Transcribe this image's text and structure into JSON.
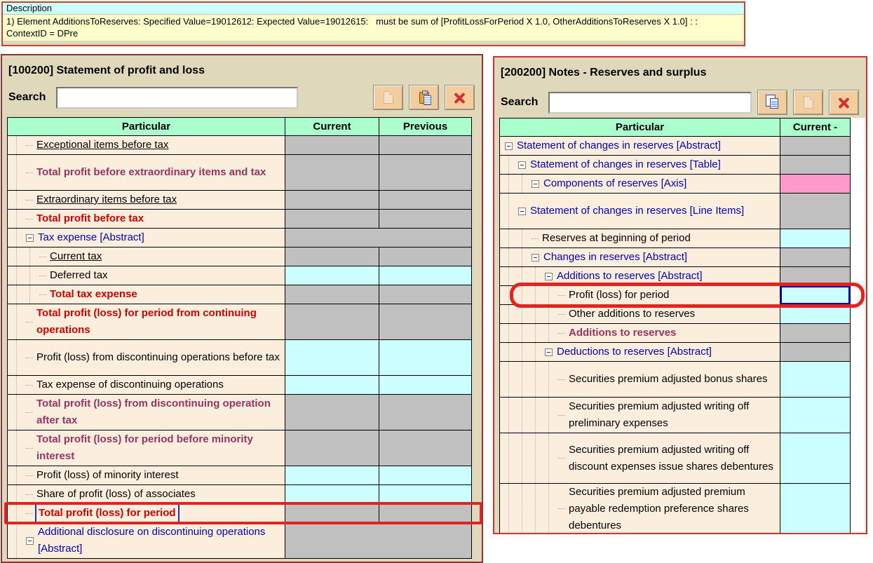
{
  "banner": {
    "title": "Description",
    "message_lines": [
      "1) Element AdditionsToReserves: Specified Value=19012612: Expected Value=19012615:   must be sum of [ProfitLossForPeriod X 1.0, OtherAdditionsToReserves X 1.0] : :",
      "ContextID = DPre"
    ]
  },
  "colors": {
    "panel_bg": "#DFD8BA",
    "header_bg": "#AAFFCC",
    "row_bg": "#FBEEDC",
    "cell_gray": "#C0C0C0",
    "cell_cyan": "#CCFFFF",
    "cell_pink": "#FF99CC",
    "text_blue": "#0000BB",
    "text_red": "#CC0000",
    "text_purple": "#993366",
    "annotation_red": "#E32222",
    "left_panel_border": "#8E3334",
    "right_panel_border": "#CC3333"
  },
  "panels": [
    {
      "title": "[100200] Statement of profit and loss",
      "search": {
        "label": "Search",
        "value": ""
      },
      "toolbar": [
        {
          "name": "copy",
          "icon": "page-icon",
          "enabled": false
        },
        {
          "name": "paste",
          "icon": "clipboard-icon",
          "enabled": true
        },
        {
          "name": "delete",
          "icon": "x-icon",
          "enabled": true
        }
      ],
      "columns": [
        "Particular",
        "Current",
        "Previous"
      ],
      "rows": [
        {
          "label": "Exceptional items before tax",
          "style": "black",
          "underline": true,
          "indent": 1,
          "lines": 1,
          "cells": [
            "gray",
            "gray"
          ]
        },
        {
          "label": "Total profit before extraordinary items and tax",
          "style": "purple",
          "indent": 1,
          "lines": 2,
          "cells": [
            "gray",
            "gray"
          ]
        },
        {
          "label": "Extraordinary items before tax",
          "style": "black",
          "underline": true,
          "indent": 1,
          "lines": 1,
          "cells": [
            "gray",
            "gray"
          ]
        },
        {
          "label": "Total profit before tax",
          "style": "red",
          "indent": 1,
          "lines": 1,
          "cells": [
            "gray",
            "gray"
          ]
        },
        {
          "label": "Tax expense [Abstract]",
          "style": "blue",
          "indent": 1,
          "expand": true,
          "lines": 1,
          "span": true,
          "cells": [
            "gray"
          ]
        },
        {
          "label": "Current tax",
          "style": "black",
          "underline": true,
          "indent": 2,
          "lines": 1,
          "cells": [
            "gray",
            "gray"
          ]
        },
        {
          "label": "Deferred tax",
          "style": "black",
          "indent": 2,
          "lines": 1,
          "cells": [
            "cyan",
            "cyan"
          ]
        },
        {
          "label": "Total tax expense",
          "style": "red",
          "indent": 2,
          "lines": 1,
          "cells": [
            "gray",
            "gray"
          ]
        },
        {
          "label": "Total profit (loss) for period from continuing operations",
          "style": "red",
          "indent": 1,
          "lines": 2,
          "cells": [
            "gray",
            "gray"
          ]
        },
        {
          "label": "Profit (loss) from discontinuing operations before tax",
          "style": "black",
          "indent": 1,
          "lines": 2,
          "cells": [
            "cyan",
            "cyan"
          ]
        },
        {
          "label": "Tax expense of discontinuing operations",
          "style": "black",
          "indent": 1,
          "lines": 1,
          "cells": [
            "cyan",
            "cyan"
          ]
        },
        {
          "label": "Total profit (loss) from discontinuing operation after tax",
          "style": "purple",
          "indent": 1,
          "lines": 2,
          "cells": [
            "gray",
            "gray"
          ]
        },
        {
          "label": "Total profit (loss) for period before minority interest",
          "style": "purple",
          "indent": 1,
          "lines": 2,
          "cells": [
            "gray",
            "gray"
          ]
        },
        {
          "label": "Profit (loss) of minority interest",
          "style": "black",
          "indent": 1,
          "lines": 1,
          "cells": [
            "cyan",
            "cyan"
          ]
        },
        {
          "label": "Share of profit (loss) of associates",
          "style": "black",
          "indent": 1,
          "lines": 1,
          "cells": [
            "cyan",
            "cyan"
          ]
        },
        {
          "label": "Total profit (loss) for period",
          "style": "red",
          "indent": 1,
          "lines": 1,
          "cells": [
            "gray",
            "gray"
          ],
          "annotation": "rect",
          "cursor_bars": true
        },
        {
          "label": "Additional disclosure on discontinuing operations [Abstract]",
          "style": "blue",
          "indent": 1,
          "expand": true,
          "lines": 2,
          "span": true,
          "cells": [
            "gray"
          ]
        }
      ]
    },
    {
      "title": "[200200] Notes - Reserves and surplus",
      "search": {
        "label": "Search",
        "value": ""
      },
      "toolbar": [
        {
          "name": "copy",
          "icon": "copy-pages-icon",
          "enabled": true
        },
        {
          "name": "paste",
          "icon": "page-icon",
          "enabled": false
        },
        {
          "name": "delete",
          "icon": "x-icon",
          "enabled": true
        }
      ],
      "columns": [
        "Particular",
        "Current -"
      ],
      "rows": [
        {
          "label": "Statement of changes in reserves [Abstract]",
          "style": "blue",
          "indent": 0,
          "expand": true,
          "lines": 1,
          "cells": [
            "gray"
          ]
        },
        {
          "label": "Statement of changes in reserves [Table]",
          "style": "blue",
          "indent": 1,
          "expand": true,
          "lines": 1,
          "cells": [
            "gray"
          ]
        },
        {
          "label": "Components of reserves [Axis]",
          "style": "blue",
          "indent": 2,
          "expand": true,
          "lines": 1,
          "cells": [
            "pink"
          ]
        },
        {
          "label": "Statement of changes in reserves [Line Items]",
          "style": "blue",
          "indent": 1,
          "expand": true,
          "lines": 2,
          "cells": [
            "gray"
          ]
        },
        {
          "label": "Reserves at beginning of period",
          "style": "black",
          "indent": 2,
          "lines": 1,
          "cells": [
            "cyan"
          ]
        },
        {
          "label": "Changes in reserves [Abstract]",
          "style": "blue",
          "indent": 2,
          "expand": true,
          "lines": 1,
          "cells": [
            "gray"
          ]
        },
        {
          "label": "Additions to reserves [Abstract]",
          "style": "blue",
          "indent": 3,
          "expand": true,
          "lines": 1,
          "cells": [
            "gray"
          ]
        },
        {
          "label": "Profit (loss) for period",
          "style": "black",
          "indent": 4,
          "lines": 1,
          "cells": [
            "cyan"
          ],
          "annotation": "oval",
          "selected": 0
        },
        {
          "label": "Other additions to reserves",
          "style": "black",
          "indent": 4,
          "lines": 1,
          "cells": [
            "cyan"
          ]
        },
        {
          "label": "Additions to reserves",
          "style": "purple",
          "indent": 4,
          "lines": 1,
          "cells": [
            "gray"
          ]
        },
        {
          "label": "Deductions to reserves [Abstract]",
          "style": "blue",
          "indent": 3,
          "expand": true,
          "lines": 1,
          "cells": [
            "gray"
          ]
        },
        {
          "label": "Securities premium adjusted bonus shares",
          "style": "black",
          "indent": 4,
          "lines": 2,
          "cells": [
            "cyan"
          ]
        },
        {
          "label": "Securities premium adjusted writing off preliminary expenses",
          "style": "black",
          "indent": 4,
          "lines": 2,
          "cells": [
            "cyan"
          ]
        },
        {
          "label": "Securities premium adjusted writing off discount expenses issue shares debentures",
          "style": "black",
          "indent": 4,
          "lines": 3,
          "cells": [
            "cyan"
          ]
        },
        {
          "label": "Securities premium adjusted premium payable redemption preference shares debentures",
          "style": "black",
          "indent": 4,
          "lines": 3,
          "cells": [
            "cyan"
          ]
        }
      ]
    }
  ]
}
